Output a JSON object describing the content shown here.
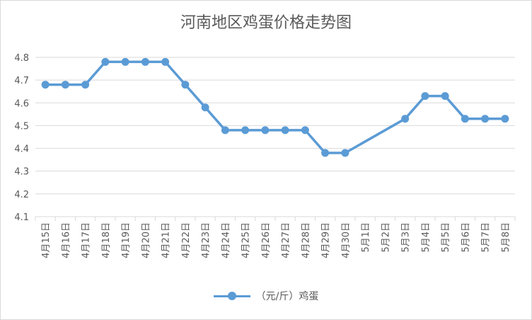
{
  "chart_data": {
    "type": "line",
    "title": "河南地区鸡蛋价格走势图",
    "categories": [
      "4月15日",
      "4月16日",
      "4月17日",
      "4月18日",
      "4月19日",
      "4月20日",
      "4月21日",
      "4月22日",
      "4月23日",
      "4月24日",
      "4月25日",
      "4月26日",
      "4月27日",
      "4月28日",
      "4月29日",
      "4月30日",
      "5月1日",
      "5月2日",
      "5月3日",
      "5月4日",
      "5月5日",
      "5月6日",
      "5月7日",
      "5月8日"
    ],
    "series": [
      {
        "name": "（元/斤）鸡蛋",
        "color": "#5b9bd5",
        "values": [
          4.68,
          4.68,
          4.68,
          4.78,
          4.78,
          4.78,
          4.78,
          4.68,
          4.58,
          4.48,
          4.48,
          4.48,
          4.48,
          4.48,
          4.38,
          4.38,
          null,
          null,
          4.53,
          4.63,
          4.63,
          4.53,
          4.53,
          4.53
        ]
      }
    ],
    "ylim": [
      4.1,
      4.8
    ],
    "yticks": [
      "4.1",
      "4.2",
      "4.3",
      "4.4",
      "4.5",
      "4.6",
      "4.7",
      "4.8"
    ],
    "grid": true,
    "legend_position": "bottom",
    "connect_gaps": true
  }
}
